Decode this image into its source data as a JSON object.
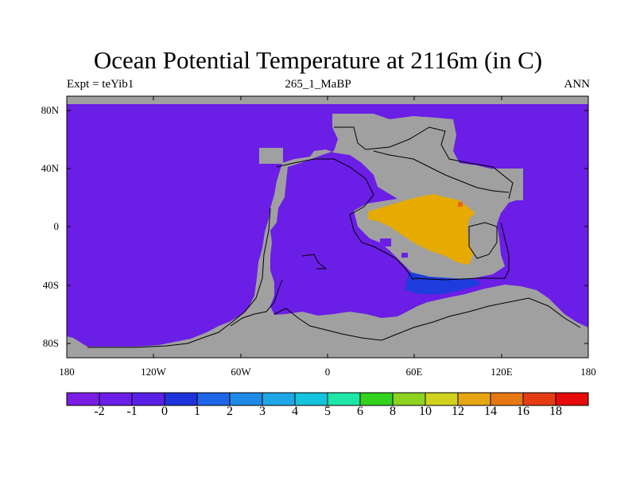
{
  "title": "Ocean Potential Temperature at 2116m (in C)",
  "subtitle_left": "Expt = teYib1",
  "subtitle_center": "265_1_MaBP",
  "subtitle_right": "ANN",
  "lat_labels": [
    "80N",
    "40N",
    "0",
    "40S",
    "80S"
  ],
  "lon_labels": [
    "180",
    "120W",
    "60W",
    "0",
    "60E",
    "120E",
    "180"
  ],
  "colorbar": {
    "labels": [
      "-2",
      "-1",
      "0",
      "1",
      "2",
      "3",
      "4",
      "5",
      "6",
      "8",
      "10",
      "12",
      "14",
      "16",
      "18"
    ],
    "colors": [
      "#7a1ee6",
      "#6a1ee8",
      "#5a1fe6",
      "#1e32dc",
      "#1e64e6",
      "#1e8ae6",
      "#1ea6e6",
      "#14c3dc",
      "#1ee6a6",
      "#32d21e",
      "#8cd21e",
      "#d2d21e",
      "#e6a614",
      "#e67814",
      "#e63c14",
      "#e60a0a"
    ]
  },
  "colors": {
    "ocean_cold": "#6a1ee6",
    "land": "#a0a0a0",
    "warm_pool": "#e6aa00",
    "deep_blue": "#1e3cdc",
    "hot_spot": "#e66414"
  }
}
